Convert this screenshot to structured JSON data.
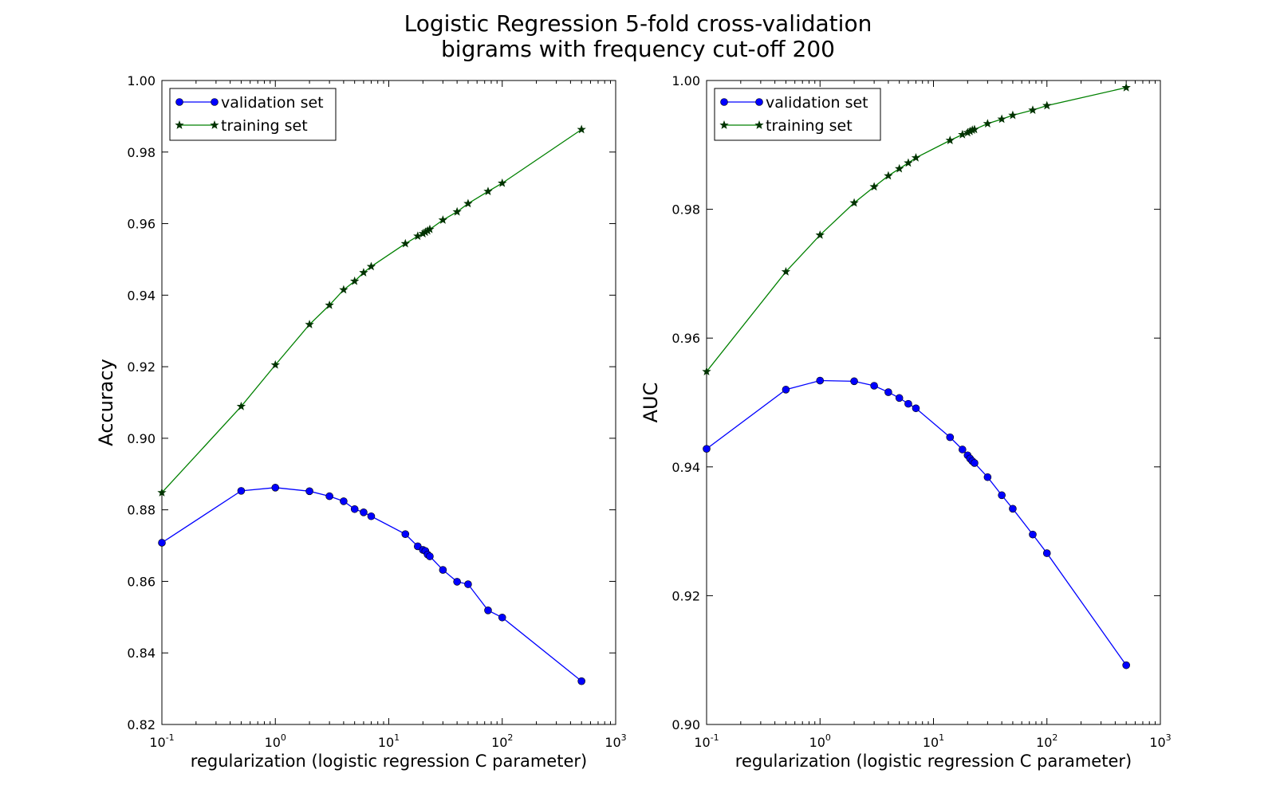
{
  "figure": {
    "title_line1": "Logistic Regression 5-fold cross-validation",
    "title_line2": "bigrams with frequency cut-off 200"
  },
  "colors": {
    "validation": "#0000ff",
    "training": "#008000",
    "training_marker": "#003300"
  },
  "chart_data": [
    {
      "type": "line",
      "xscale": "log",
      "xlabel": "regularization (logistic regression C parameter)",
      "ylabel": "Accuracy",
      "xlim": [
        0.1,
        1000
      ],
      "ylim": [
        0.82,
        1.0
      ],
      "x_ticks": [
        0.1,
        1,
        10,
        100,
        1000
      ],
      "x_tick_labels": [
        [
          "10",
          "-1"
        ],
        [
          "10",
          "0"
        ],
        [
          "10",
          "1"
        ],
        [
          "10",
          "2"
        ],
        [
          "10",
          "3"
        ]
      ],
      "y_ticks": [
        0.82,
        0.84,
        0.86,
        0.88,
        0.9,
        0.92,
        0.94,
        0.96,
        0.98,
        1.0
      ],
      "y_tick_labels": [
        "0.82",
        "0.84",
        "0.86",
        "0.88",
        "0.90",
        "0.92",
        "0.94",
        "0.96",
        "0.98",
        "1.00"
      ],
      "grid": false,
      "legend_position": "top-left",
      "x": [
        0.1,
        0.5,
        1,
        2,
        3,
        4,
        5,
        6,
        7,
        14,
        18,
        20,
        21,
        22,
        23,
        30,
        40,
        50,
        75,
        100,
        500
      ],
      "series": [
        {
          "name": "validation set",
          "marker": "circle",
          "values": [
            0.8708,
            0.8853,
            0.8862,
            0.8852,
            0.8838,
            0.8824,
            0.8802,
            0.8793,
            0.8782,
            0.8732,
            0.8698,
            0.8688,
            0.8685,
            0.8675,
            0.867,
            0.8632,
            0.8599,
            0.8592,
            0.8519,
            0.8499,
            0.8321
          ]
        },
        {
          "name": "training set",
          "marker": "star",
          "values": [
            0.8848,
            0.9089,
            0.9205,
            0.9318,
            0.9372,
            0.9415,
            0.9439,
            0.9463,
            0.948,
            0.9544,
            0.9565,
            0.9572,
            0.9576,
            0.958,
            0.9584,
            0.961,
            0.9633,
            0.9656,
            0.969,
            0.9713,
            0.9863
          ]
        }
      ]
    },
    {
      "type": "line",
      "xscale": "log",
      "xlabel": "regularization (logistic regression C parameter)",
      "ylabel": "AUC",
      "xlim": [
        0.1,
        1000
      ],
      "ylim": [
        0.9,
        1.0
      ],
      "x_ticks": [
        0.1,
        1,
        10,
        100,
        1000
      ],
      "x_tick_labels": [
        [
          "10",
          "-1"
        ],
        [
          "10",
          "0"
        ],
        [
          "10",
          "1"
        ],
        [
          "10",
          "2"
        ],
        [
          "10",
          "3"
        ]
      ],
      "y_ticks": [
        0.9,
        0.92,
        0.94,
        0.96,
        0.98,
        1.0
      ],
      "y_tick_labels": [
        "0.90",
        "0.92",
        "0.94",
        "0.96",
        "0.98",
        "1.00"
      ],
      "grid": false,
      "legend_position": "top-left",
      "x": [
        0.1,
        0.5,
        1,
        2,
        3,
        4,
        5,
        6,
        7,
        14,
        18,
        20,
        21,
        22,
        23,
        30,
        40,
        50,
        75,
        100,
        500
      ],
      "series": [
        {
          "name": "validation set",
          "marker": "circle",
          "values": [
            0.9428,
            0.952,
            0.9534,
            0.9533,
            0.9526,
            0.9516,
            0.9507,
            0.9498,
            0.9491,
            0.9446,
            0.9427,
            0.9418,
            0.9413,
            0.9409,
            0.9406,
            0.9384,
            0.9356,
            0.9335,
            0.9295,
            0.9266,
            0.9092
          ]
        },
        {
          "name": "training set",
          "marker": "star",
          "values": [
            0.9548,
            0.9703,
            0.976,
            0.981,
            0.9835,
            0.9852,
            0.9863,
            0.9872,
            0.988,
            0.9907,
            0.9916,
            0.9919,
            0.9921,
            0.9923,
            0.9924,
            0.9933,
            0.994,
            0.9946,
            0.9954,
            0.9961,
            0.9989
          ]
        }
      ]
    }
  ]
}
